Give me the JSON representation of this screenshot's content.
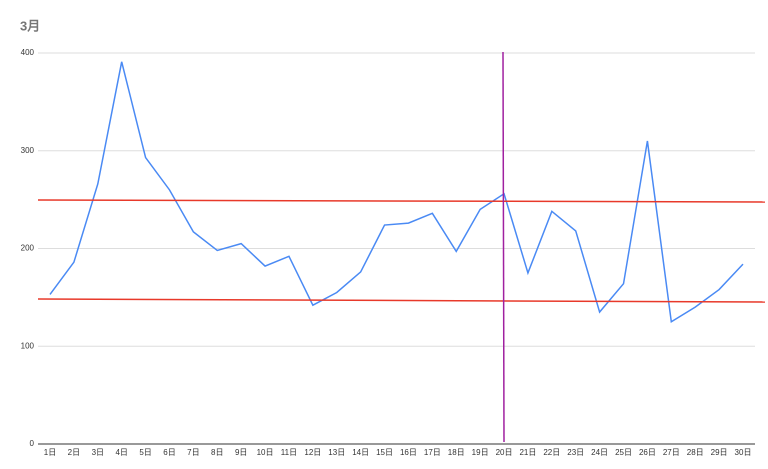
{
  "chart_data": {
    "type": "line",
    "title": "3月",
    "categories": [
      "1日",
      "2日",
      "3日",
      "4日",
      "5日",
      "6日",
      "7日",
      "8日",
      "9日",
      "10日",
      "11日",
      "12日",
      "13日",
      "14日",
      "15日",
      "16日",
      "17日",
      "18日",
      "19日",
      "20日",
      "21日",
      "22日",
      "23日",
      "24日",
      "25日",
      "26日",
      "27日",
      "28日",
      "29日",
      "30日"
    ],
    "series": [
      {
        "name": "3月",
        "color": "#4a8af4",
        "values": [
          153,
          186,
          266,
          391,
          293,
          260,
          217,
          198,
          205,
          182,
          192,
          142,
          155,
          176,
          224,
          226,
          236,
          197,
          240,
          256,
          175,
          238,
          218,
          135,
          164,
          310,
          125,
          140,
          158,
          184
        ]
      }
    ],
    "ylim": [
      0,
      400
    ],
    "yticks": [
      0,
      100,
      200,
      300,
      400
    ],
    "grid": true
  }
}
